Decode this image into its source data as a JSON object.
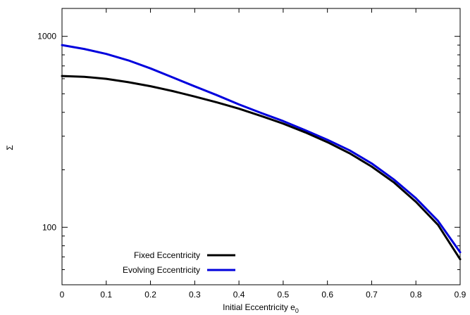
{
  "chart_data": {
    "type": "line",
    "title": "",
    "xlabel": "Initial Eccentricity e",
    "xlabel_subscript": "0",
    "ylabel": "Σ",
    "xlim": [
      0,
      0.9
    ],
    "ylim": [
      50,
      1400
    ],
    "y_scale": "log",
    "x_ticks": [
      0,
      0.1,
      0.2,
      0.3,
      0.4,
      0.5,
      0.6,
      0.7,
      0.8,
      0.9
    ],
    "x_tick_labels": [
      "0",
      "0.1",
      "0.2",
      "0.3",
      "0.4",
      "0.5",
      "0.6",
      "0.7",
      "0.8",
      "0.9"
    ],
    "y_ticks": [
      100,
      1000
    ],
    "y_tick_labels": [
      "100",
      "1000"
    ],
    "grid": false,
    "legend_position": "bottom-left",
    "series": [
      {
        "name": "Fixed Eccentricity",
        "color": "#000000",
        "x": [
          0,
          0.05,
          0.1,
          0.15,
          0.2,
          0.25,
          0.3,
          0.35,
          0.4,
          0.45,
          0.5,
          0.55,
          0.6,
          0.65,
          0.7,
          0.75,
          0.8,
          0.85,
          0.9
        ],
        "y": [
          620,
          614,
          599,
          575,
          548,
          517,
          484,
          451,
          418,
          383,
          349,
          314,
          279,
          244,
          208,
          172,
          136,
          103,
          68
        ]
      },
      {
        "name": "Evolving Eccentricity",
        "color": "#0000dd",
        "x": [
          0,
          0.05,
          0.1,
          0.15,
          0.2,
          0.25,
          0.3,
          0.35,
          0.4,
          0.45,
          0.5,
          0.55,
          0.6,
          0.65,
          0.7,
          0.75,
          0.8,
          0.85,
          0.9
        ],
        "y": [
          900,
          859,
          809,
          748,
          679,
          610,
          547,
          492,
          440,
          397,
          360,
          322,
          287,
          253,
          216,
          178,
          142,
          108,
          74
        ]
      }
    ]
  }
}
